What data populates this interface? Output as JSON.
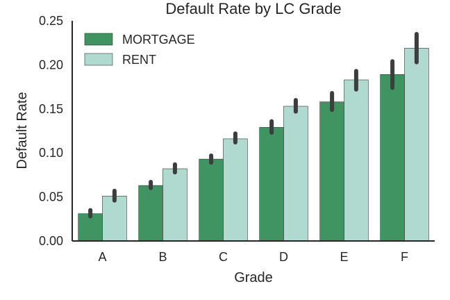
{
  "chart_data": {
    "type": "bar",
    "title": "Default Rate by LC Grade",
    "xlabel": "Grade",
    "ylabel": "Default Rate",
    "categories": [
      "A",
      "B",
      "C",
      "D",
      "E",
      "F"
    ],
    "ylim": [
      0,
      0.25
    ],
    "yticks": [
      0.0,
      0.05,
      0.1,
      0.15,
      0.2,
      0.25
    ],
    "ytick_labels": [
      "0.00",
      "0.05",
      "0.10",
      "0.15",
      "0.20",
      "0.25"
    ],
    "grid": false,
    "legend_position": "top-left",
    "series": [
      {
        "name": "MORTGAGE",
        "color": "#3f9462",
        "values": [
          0.031,
          0.063,
          0.093,
          0.129,
          0.158,
          0.189
        ],
        "ci_low": [
          0.028,
          0.06,
          0.089,
          0.123,
          0.149,
          0.174
        ],
        "ci_high": [
          0.035,
          0.067,
          0.097,
          0.136,
          0.168,
          0.204
        ]
      },
      {
        "name": "RENT",
        "color": "#b0d9cf",
        "values": [
          0.051,
          0.082,
          0.116,
          0.153,
          0.183,
          0.219
        ],
        "ci_low": [
          0.046,
          0.078,
          0.112,
          0.147,
          0.172,
          0.203
        ],
        "ci_high": [
          0.057,
          0.087,
          0.122,
          0.16,
          0.193,
          0.235
        ]
      }
    ],
    "errorbar_color": "#3d3d3d"
  }
}
